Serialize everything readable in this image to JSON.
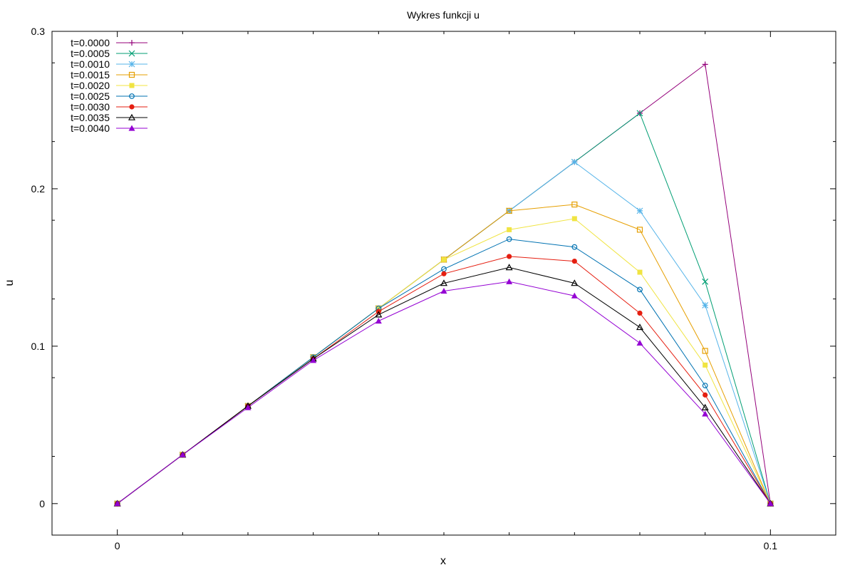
{
  "chart_data": {
    "type": "line",
    "title": "Wykres funkcji u",
    "xlabel": "x",
    "ylabel": "u",
    "xlim": [
      -0.01,
      0.11
    ],
    "ylim": [
      -0.02,
      0.3
    ],
    "xticks": [
      0,
      0.1
    ],
    "xtick_labels": [
      "0",
      "0.1"
    ],
    "yticks": [
      0,
      0.1,
      0.2,
      0.3
    ],
    "ytick_labels": [
      "0",
      "0.1",
      "0.2",
      "0.3"
    ],
    "legend_position": "top-left",
    "grid": false,
    "x": [
      0,
      0.01,
      0.02,
      0.03,
      0.04,
      0.05,
      0.06,
      0.07,
      0.08,
      0.09,
      0.1
    ],
    "series": [
      {
        "name": "t=0.0000",
        "color": "#94007a",
        "marker": "plus",
        "values": [
          0,
          0.031,
          0.062,
          0.093,
          0.124,
          0.155,
          0.186,
          0.217,
          0.248,
          0.279,
          0
        ]
      },
      {
        "name": "t=0.0005",
        "color": "#009e73",
        "marker": "cross",
        "values": [
          0,
          0.031,
          0.062,
          0.093,
          0.124,
          0.155,
          0.186,
          0.217,
          0.248,
          0.141,
          0
        ]
      },
      {
        "name": "t=0.0010",
        "color": "#56b4e9",
        "marker": "star",
        "values": [
          0,
          0.031,
          0.062,
          0.093,
          0.124,
          0.155,
          0.186,
          0.217,
          0.186,
          0.126,
          0
        ]
      },
      {
        "name": "t=0.0015",
        "color": "#e69f00",
        "marker": "square-open",
        "values": [
          0,
          0.031,
          0.062,
          0.093,
          0.124,
          0.155,
          0.186,
          0.19,
          0.174,
          0.097,
          0
        ]
      },
      {
        "name": "t=0.0020",
        "color": "#f0e442",
        "marker": "square-filled",
        "values": [
          0,
          0.031,
          0.062,
          0.093,
          0.124,
          0.155,
          0.174,
          0.181,
          0.147,
          0.088,
          0
        ]
      },
      {
        "name": "t=0.0025",
        "color": "#0072b2",
        "marker": "circle-open",
        "values": [
          0,
          0.031,
          0.062,
          0.093,
          0.124,
          0.149,
          0.168,
          0.163,
          0.136,
          0.075,
          0
        ]
      },
      {
        "name": "t=0.0030",
        "color": "#e51e10",
        "marker": "circle-filled",
        "values": [
          0,
          0.031,
          0.062,
          0.092,
          0.122,
          0.146,
          0.157,
          0.154,
          0.121,
          0.069,
          0
        ]
      },
      {
        "name": "t=0.0035",
        "color": "#000000",
        "marker": "triangle-open",
        "values": [
          0,
          0.031,
          0.062,
          0.092,
          0.12,
          0.14,
          0.15,
          0.14,
          0.112,
          0.061,
          0
        ]
      },
      {
        "name": "t=0.0040",
        "color": "#9400d3",
        "marker": "triangle-filled",
        "values": [
          0,
          0.031,
          0.061,
          0.091,
          0.116,
          0.135,
          0.141,
          0.132,
          0.102,
          0.057,
          0
        ]
      }
    ]
  }
}
